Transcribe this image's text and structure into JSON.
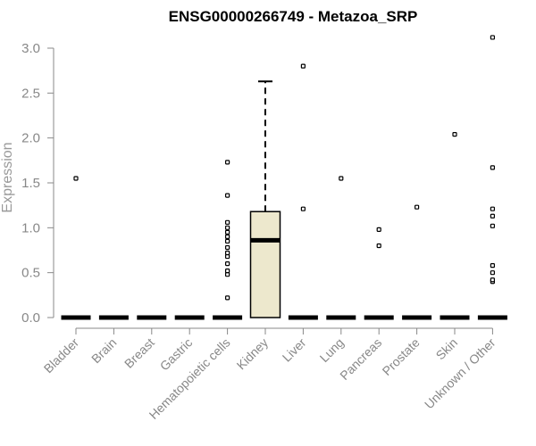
{
  "chart_data": {
    "type": "box",
    "title": "ENSG00000266749 - Metazoa_SRP",
    "xlabel": "",
    "ylabel": "Expression",
    "ylim": [
      0,
      3.1
    ],
    "yticks": [
      "0.0",
      "0.5",
      "1.0",
      "1.5",
      "2.0",
      "2.5",
      "3.0"
    ],
    "ytick_values": [
      0,
      0.5,
      1.0,
      1.5,
      2.0,
      2.5,
      3.0
    ],
    "categories": [
      "Bladder",
      "Brain",
      "Breast",
      "Gastric",
      "Hematopoietic cells",
      "Kidney",
      "Liver",
      "Lung",
      "Pancreas",
      "Prostate",
      "Skin",
      "Unknown / Other"
    ],
    "boxes": [
      {
        "q1": 0,
        "median": 0,
        "q3": 0,
        "whisker_low": 0,
        "whisker_high": 0,
        "outliers": [
          1.55
        ]
      },
      {
        "q1": 0,
        "median": 0,
        "q3": 0,
        "whisker_low": 0,
        "whisker_high": 0,
        "outliers": []
      },
      {
        "q1": 0,
        "median": 0,
        "q3": 0,
        "whisker_low": 0,
        "whisker_high": 0,
        "outliers": []
      },
      {
        "q1": 0,
        "median": 0,
        "q3": 0,
        "whisker_low": 0,
        "whisker_high": 0,
        "outliers": []
      },
      {
        "q1": 0,
        "median": 0,
        "q3": 0,
        "whisker_low": 0,
        "whisker_high": 0,
        "outliers": [
          0.22,
          0.48,
          0.52,
          0.6,
          0.68,
          0.72,
          0.78,
          0.85,
          0.9,
          0.95,
          1.0,
          1.06,
          1.36,
          1.73
        ]
      },
      {
        "q1": 0,
        "median": 0.86,
        "q3": 1.18,
        "whisker_low": 0,
        "whisker_high": 2.63,
        "outliers": []
      },
      {
        "q1": 0,
        "median": 0,
        "q3": 0,
        "whisker_low": 0,
        "whisker_high": 0,
        "outliers": [
          1.21,
          2.8
        ]
      },
      {
        "q1": 0,
        "median": 0,
        "q3": 0,
        "whisker_low": 0,
        "whisker_high": 0,
        "outliers": [
          1.55
        ]
      },
      {
        "q1": 0,
        "median": 0,
        "q3": 0,
        "whisker_low": 0,
        "whisker_high": 0,
        "outliers": [
          0.8,
          0.98
        ]
      },
      {
        "q1": 0,
        "median": 0,
        "q3": 0,
        "whisker_low": 0,
        "whisker_high": 0,
        "outliers": [
          1.23
        ]
      },
      {
        "q1": 0,
        "median": 0,
        "q3": 0,
        "whisker_low": 0,
        "whisker_high": 0,
        "outliers": [
          2.04
        ]
      },
      {
        "q1": 0,
        "median": 0,
        "q3": 0,
        "whisker_low": 0,
        "whisker_high": 0,
        "outliers": [
          0.4,
          0.42,
          0.5,
          0.58,
          1.02,
          1.13,
          1.21,
          1.67,
          3.12
        ]
      }
    ],
    "colors": {
      "box_fill": "#ede8cd",
      "box_stroke": "#000000",
      "axis": "#888888",
      "title": "#000000",
      "label": "#999999"
    },
    "grid": false,
    "legend": "none"
  }
}
